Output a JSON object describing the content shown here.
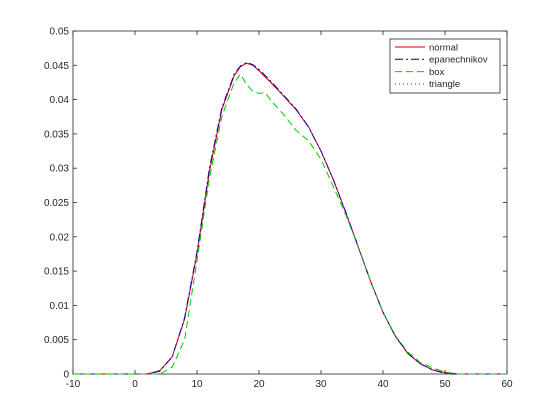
{
  "chart_data": {
    "type": "line",
    "xlim": [
      -10,
      60
    ],
    "ylim": [
      0,
      0.05
    ],
    "x_ticks": [
      -10,
      0,
      10,
      20,
      30,
      40,
      50,
      60
    ],
    "x_tick_labels": [
      "-10",
      "0",
      "10",
      "20",
      "30",
      "40",
      "50",
      "60"
    ],
    "y_ticks": [
      0,
      0.005,
      0.01,
      0.015,
      0.02,
      0.025,
      0.03,
      0.035,
      0.04,
      0.045,
      0.05
    ],
    "y_tick_labels": [
      "0",
      "0.005",
      "0.01",
      "0.015",
      "0.02",
      "0.025",
      "0.03",
      "0.035",
      "0.04",
      "0.045",
      "0.05"
    ],
    "grid": false,
    "legend_position": "top-right",
    "series": [
      {
        "name": "normal",
        "color": "#cc0000",
        "dash": "solid",
        "x": [
          -10,
          2,
          4,
          6,
          8,
          10,
          12,
          14,
          16,
          17,
          18,
          19,
          20,
          22,
          24,
          26,
          28,
          30,
          32,
          34,
          36,
          38,
          40,
          42,
          44,
          46,
          48,
          50,
          52,
          60
        ],
        "y": [
          0,
          0,
          0.0005,
          0.0025,
          0.008,
          0.0175,
          0.0295,
          0.0385,
          0.0435,
          0.0448,
          0.0453,
          0.045,
          0.0442,
          0.0424,
          0.0405,
          0.0385,
          0.036,
          0.0325,
          0.0283,
          0.0235,
          0.0185,
          0.0135,
          0.009,
          0.0055,
          0.003,
          0.0015,
          0.0006,
          0.0002,
          0,
          0
        ]
      },
      {
        "name": "epanechnikov",
        "color": "#00008b",
        "dash": "8 3 2 3",
        "x": [
          -10,
          2,
          4,
          6,
          8,
          10,
          12,
          14,
          16,
          17,
          18,
          19,
          20,
          22,
          24,
          26,
          28,
          30,
          32,
          34,
          36,
          38,
          40,
          42,
          44,
          46,
          48,
          50,
          52,
          60
        ],
        "y": [
          0,
          0,
          0.0004,
          0.0025,
          0.0082,
          0.0178,
          0.03,
          0.0388,
          0.0437,
          0.0449,
          0.0454,
          0.0451,
          0.0444,
          0.0426,
          0.0406,
          0.0386,
          0.036,
          0.0325,
          0.0283,
          0.0236,
          0.0186,
          0.0135,
          0.009,
          0.0055,
          0.003,
          0.0015,
          0.0006,
          0.0001,
          0,
          0
        ]
      },
      {
        "name": "box",
        "color": "#00cc00",
        "dash": "7 4",
        "x": [
          -10,
          4,
          6,
          8,
          10,
          12,
          14,
          16,
          17,
          18,
          19,
          20,
          21,
          22,
          24,
          26,
          28,
          30,
          32,
          34,
          36,
          38,
          40,
          42,
          44,
          46,
          48,
          50,
          52,
          60
        ],
        "y": [
          0,
          0,
          0.001,
          0.005,
          0.0165,
          0.0285,
          0.0375,
          0.0425,
          0.0437,
          0.0422,
          0.0412,
          0.0409,
          0.041,
          0.0398,
          0.0378,
          0.0355,
          0.034,
          0.0313,
          0.0273,
          0.0232,
          0.0186,
          0.0135,
          0.009,
          0.0056,
          0.0032,
          0.0017,
          0.0009,
          0.0003,
          0,
          0
        ]
      },
      {
        "name": "triangle",
        "color": "#cc00cc",
        "dash": "1 3",
        "x": [
          -10,
          2,
          4,
          6,
          8,
          10,
          12,
          14,
          16,
          17,
          18,
          19,
          20,
          22,
          24,
          26,
          28,
          30,
          32,
          34,
          36,
          38,
          40,
          42,
          44,
          46,
          48,
          50,
          52,
          60
        ],
        "y": [
          0,
          0,
          0.0005,
          0.0025,
          0.008,
          0.0176,
          0.0297,
          0.0386,
          0.0436,
          0.0448,
          0.0453,
          0.045,
          0.0443,
          0.0425,
          0.0405,
          0.0385,
          0.036,
          0.0325,
          0.0283,
          0.0235,
          0.0185,
          0.0135,
          0.009,
          0.0055,
          0.003,
          0.0015,
          0.0006,
          0.0002,
          0,
          0
        ]
      }
    ]
  }
}
